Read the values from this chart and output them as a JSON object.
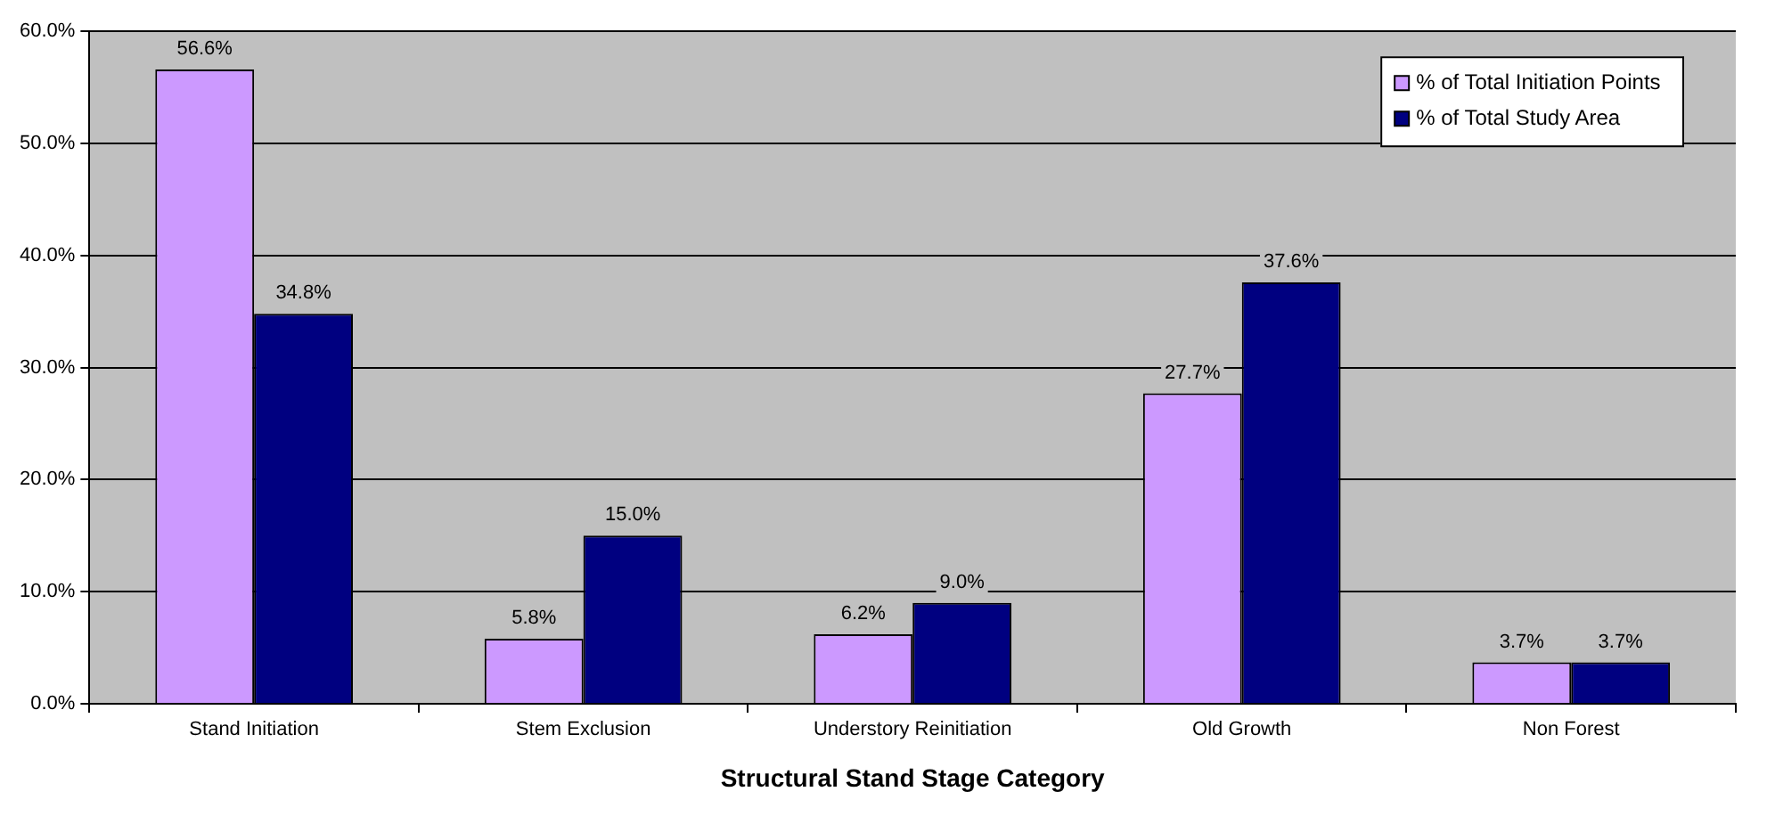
{
  "chart_data": {
    "type": "bar",
    "xlabel": "Structural Stand Stage Category",
    "categories": [
      "Stand Initiation",
      "Stem Exclusion",
      "Understory Reinitiation",
      "Old Growth",
      "Non Forest"
    ],
    "series": [
      {
        "name": "% of Total Initiation Points",
        "color": "#cc99ff",
        "values": [
          56.6,
          5.8,
          6.2,
          27.7,
          3.7
        ],
        "value_labels": [
          "56.6%",
          "5.8%",
          "6.2%",
          "27.7%",
          "3.7%"
        ]
      },
      {
        "name": "% of Total Study Area",
        "color": "#000080",
        "values": [
          34.8,
          15.0,
          9.0,
          37.6,
          3.7
        ],
        "value_labels": [
          "34.8%",
          "15.0%",
          "9.0%",
          "37.6%",
          "3.7%"
        ]
      }
    ],
    "ylim": [
      0,
      60
    ],
    "yticks": [
      {
        "value": 0,
        "label": "0.0%"
      },
      {
        "value": 10,
        "label": "10.0%"
      },
      {
        "value": 20,
        "label": "20.0%"
      },
      {
        "value": 30,
        "label": "30.0%"
      },
      {
        "value": 40,
        "label": "40.0%"
      },
      {
        "value": 50,
        "label": "50.0%"
      },
      {
        "value": 60,
        "label": "60.0%"
      }
    ],
    "grid": "y",
    "legend": "top right"
  }
}
